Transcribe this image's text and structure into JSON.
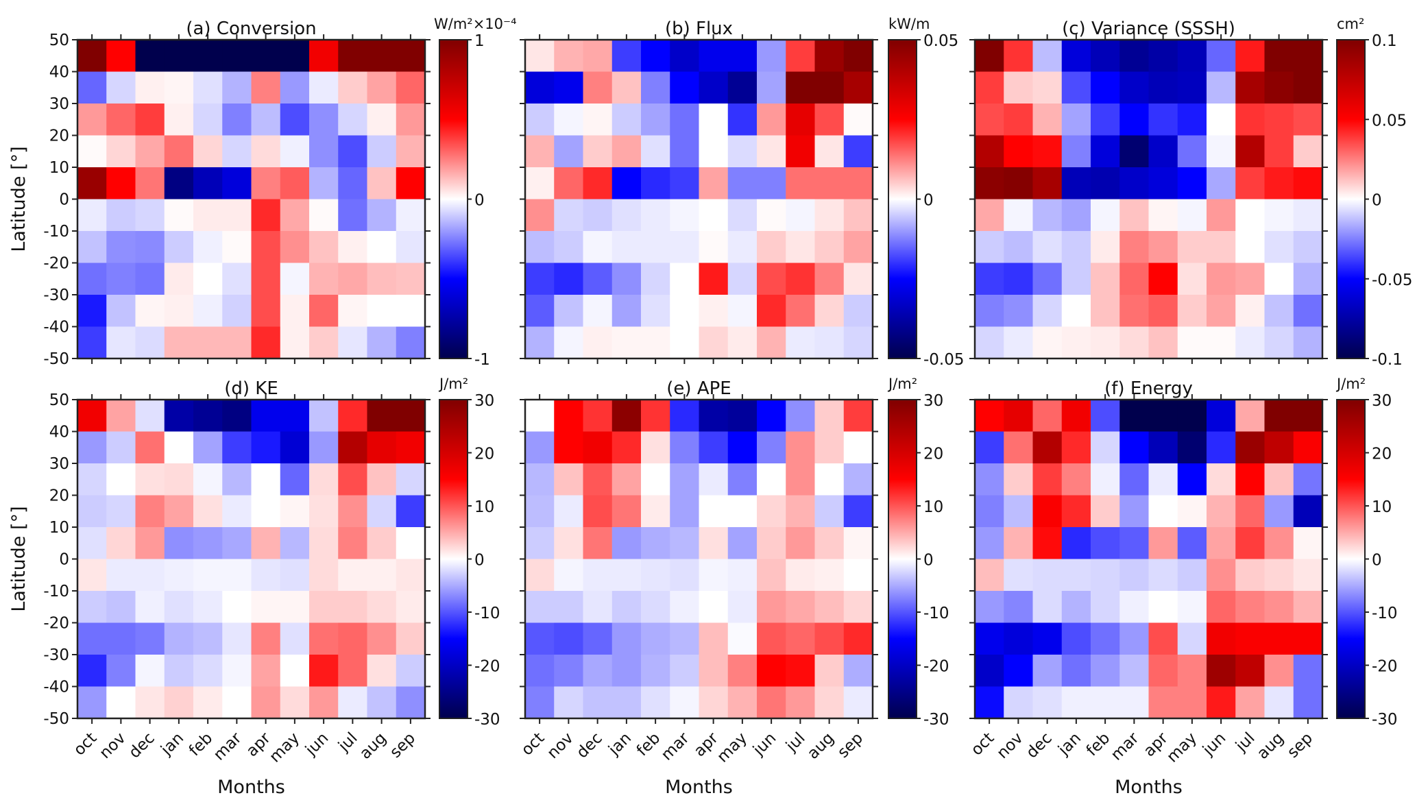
{
  "figure": {
    "ylabel": "Latitude [°]",
    "xlabel": "Months",
    "months": [
      "oct",
      "nov",
      "dec",
      "jan",
      "feb",
      "mar",
      "apr",
      "may",
      "jun",
      "jul",
      "aug",
      "sep"
    ],
    "y_ticks": [
      "50",
      "40",
      "30",
      "20",
      "10",
      "0",
      "-10",
      "-20",
      "-30",
      "-40",
      "-50"
    ],
    "colormap": {
      "min": "#00004d",
      "low": "#0000ff",
      "mid": "#ffffff",
      "high": "#ff0000",
      "max": "#800000"
    }
  },
  "chart_data": [
    {
      "type": "heatmap",
      "title": "(a) Conversion",
      "unit": "W/m²×10⁻⁴",
      "clim": [
        -1,
        1
      ],
      "cbar_ticks": [
        "1",
        "0",
        "-1"
      ],
      "cbar_tick_values": [
        1,
        0,
        -1
      ],
      "y_bins_north_to_south": [
        "40–50",
        "30–40",
        "20–30",
        "10–20",
        "0–10",
        "-10–0",
        "-20–-10",
        "-30–-20",
        "-40–-30",
        "-50–-40"
      ],
      "values": [
        [
          1,
          0.5,
          -1,
          -1,
          -1,
          -1,
          -1,
          -1,
          0.55,
          1,
          1,
          1
        ],
        [
          -0.3,
          -0.08,
          0.03,
          0.02,
          -0.06,
          -0.15,
          0.25,
          -0.2,
          -0.04,
          0.1,
          0.18,
          0.3
        ],
        [
          0.2,
          0.3,
          0.38,
          0.03,
          -0.08,
          -0.25,
          -0.13,
          -0.35,
          -0.22,
          -0.08,
          0.03,
          0.2
        ],
        [
          0.01,
          0.08,
          0.17,
          0.28,
          0.08,
          -0.08,
          0.07,
          -0.03,
          -0.22,
          -0.35,
          -0.1,
          0.15
        ],
        [
          0.9,
          0.5,
          0.27,
          -0.85,
          -0.7,
          -0.6,
          0.25,
          0.32,
          -0.15,
          -0.3,
          0.12,
          0.5
        ],
        [
          -0.04,
          -0.1,
          -0.08,
          0.01,
          0.04,
          0.04,
          0.42,
          0.17,
          0.01,
          -0.28,
          -0.15,
          -0.03
        ],
        [
          -0.12,
          -0.22,
          -0.23,
          -0.1,
          -0.03,
          0.01,
          0.35,
          0.22,
          0.12,
          0.03,
          0,
          -0.05
        ],
        [
          -0.28,
          -0.25,
          -0.27,
          0.04,
          0,
          -0.06,
          0.35,
          -0.02,
          0.15,
          0.17,
          0.13,
          0.12
        ],
        [
          -0.45,
          -0.12,
          0.02,
          0.03,
          -0.03,
          -0.09,
          0.35,
          0.03,
          0.3,
          0.02,
          0,
          0
        ],
        [
          -0.38,
          -0.05,
          -0.07,
          0.14,
          0.14,
          0.14,
          0.42,
          0.03,
          0.1,
          -0.05,
          -0.15,
          -0.25
        ]
      ]
    },
    {
      "type": "heatmap",
      "title": "(b) Flux",
      "unit": "kW/m",
      "clim": [
        -0.05,
        0.05
      ],
      "cbar_ticks": [
        "0.05",
        "0",
        "-0.05"
      ],
      "cbar_tick_values": [
        0.05,
        0,
        -0.05
      ],
      "values": [
        [
          0.0025,
          0.0075,
          0.0085,
          -0.019,
          -0.025,
          -0.0325,
          -0.0275,
          -0.0275,
          -0.01,
          0.019,
          0.045,
          0.05
        ],
        [
          -0.03,
          -0.0275,
          0.0125,
          0.006,
          -0.0125,
          -0.025,
          -0.0325,
          -0.04,
          -0.009,
          0.05,
          0.05,
          0.0425
        ],
        [
          -0.005,
          -0.001,
          0.001,
          -0.005,
          -0.009,
          -0.014,
          0,
          -0.02,
          0.01,
          0.03,
          0.0175,
          0.0005
        ],
        [
          0.0075,
          -0.009,
          0.005,
          0.0085,
          -0.003,
          -0.014,
          0,
          -0.0035,
          0.0025,
          0.0275,
          0.0025,
          -0.019
        ],
        [
          0.0015,
          0.015,
          0.021,
          -0.025,
          -0.021,
          -0.019,
          0.009,
          -0.0125,
          -0.0125,
          0.014,
          0.014,
          0.014
        ],
        [
          0.011,
          -0.004,
          -0.005,
          -0.003,
          -0.002,
          -0.001,
          0,
          -0.0035,
          0.0005,
          -0.001,
          0.0025,
          0.006
        ],
        [
          -0.0065,
          -0.005,
          -0.001,
          -0.002,
          -0.002,
          -0.002,
          0.0005,
          -0.002,
          0.005,
          0.0025,
          0.005,
          0.009
        ],
        [
          -0.019,
          -0.021,
          -0.016,
          -0.011,
          -0.004,
          0,
          0.0225,
          -0.004,
          0.0175,
          0.02,
          0.0125,
          0.0025
        ],
        [
          -0.016,
          -0.006,
          -0.001,
          -0.009,
          -0.003,
          0,
          0.0015,
          -0.001,
          0.021,
          0.014,
          0.004,
          -0.005
        ],
        [
          -0.0075,
          -0.001,
          0.0015,
          0.001,
          0.001,
          0,
          0.004,
          0.002,
          0.0075,
          -0.002,
          -0.0025,
          -0.004
        ]
      ]
    },
    {
      "type": "heatmap",
      "title": "(c) Variance (SSSH)",
      "unit": "cm²",
      "clim": [
        -0.1,
        0.1
      ],
      "cbar_ticks": [
        "0.1",
        "0.05",
        "0",
        "-0.05",
        "-0.1"
      ],
      "cbar_tick_values": [
        0.1,
        0.05,
        0,
        -0.05,
        -0.1
      ],
      "values": [
        [
          0.1,
          0.04,
          -0.013,
          -0.06,
          -0.07,
          -0.08,
          -0.075,
          -0.07,
          -0.03,
          0.045,
          0.1,
          0.1
        ],
        [
          0.038,
          0.01,
          0.008,
          -0.035,
          -0.05,
          -0.065,
          -0.07,
          -0.068,
          -0.014,
          0.085,
          0.095,
          0.1
        ],
        [
          0.035,
          0.038,
          0.015,
          -0.018,
          -0.038,
          -0.05,
          -0.04,
          -0.045,
          0,
          0.04,
          0.038,
          0.035
        ],
        [
          0.08,
          0.05,
          0.048,
          -0.025,
          -0.06,
          -0.09,
          -0.065,
          -0.028,
          -0.002,
          0.08,
          0.038,
          0.01
        ],
        [
          0.095,
          0.098,
          0.085,
          -0.07,
          -0.072,
          -0.065,
          -0.06,
          -0.05,
          -0.017,
          0.038,
          0.045,
          0.048
        ],
        [
          0.017,
          -0.002,
          -0.014,
          -0.018,
          -0.002,
          0.012,
          0.002,
          -0.002,
          0.02,
          0,
          -0.002,
          -0.004
        ],
        [
          -0.01,
          -0.013,
          -0.006,
          -0.01,
          0.004,
          0.025,
          0.02,
          0.01,
          0.01,
          0,
          -0.006,
          -0.01
        ],
        [
          -0.038,
          -0.04,
          -0.028,
          -0.01,
          0.012,
          0.03,
          0.05,
          0.006,
          0.02,
          0.018,
          0,
          -0.015
        ],
        [
          -0.025,
          -0.022,
          -0.008,
          0,
          0.012,
          0.028,
          0.032,
          0.01,
          0.018,
          0.003,
          -0.012,
          -0.028
        ],
        [
          -0.008,
          -0.004,
          0.002,
          0.003,
          0.004,
          0.007,
          0.012,
          0.001,
          0.001,
          -0.004,
          -0.008,
          -0.015
        ]
      ]
    },
    {
      "type": "heatmap",
      "title": "(d) KE",
      "unit": "J/m²",
      "clim": [
        -30,
        30
      ],
      "cbar_ticks": [
        "30",
        "20",
        "10",
        "0",
        "-10",
        "-20",
        "-30"
      ],
      "cbar_tick_values": [
        30,
        20,
        10,
        0,
        -10,
        -20,
        -30
      ],
      "values": [
        [
          16.5,
          5.4,
          -1.8,
          -22.5,
          -24,
          -25.5,
          -16.5,
          -16.5,
          -3.6,
          12.6,
          30,
          30
        ],
        [
          -6,
          -3,
          8.4,
          0,
          -5.4,
          -11.4,
          -13.5,
          -18.6,
          -6,
          24,
          18,
          16.5
        ],
        [
          -2.4,
          0,
          1.8,
          2.1,
          -0.6,
          -4.2,
          0,
          -9,
          2.1,
          10.5,
          3.6,
          -2.4
        ],
        [
          -3,
          -2.4,
          7.5,
          5.4,
          1.8,
          -1.2,
          0,
          0.6,
          1.8,
          6.6,
          -2.4,
          -11.4
        ],
        [
          -1.8,
          2.4,
          6,
          -6.6,
          -6,
          -5.1,
          4.5,
          -4.2,
          2.1,
          7.5,
          3,
          0
        ],
        [
          1.5,
          -1.2,
          -1.2,
          -0.9,
          -0.6,
          -0.6,
          -1.5,
          -1.8,
          2.1,
          0.9,
          0.9,
          1.5
        ],
        [
          -3,
          -3.6,
          -0.9,
          -1.8,
          -1.2,
          0,
          0.6,
          0.6,
          3,
          3,
          2.1,
          1.2
        ],
        [
          -8.4,
          -8.4,
          -7.8,
          -4.5,
          -3.9,
          -1.5,
          7.5,
          -1.8,
          8.4,
          9,
          6.6,
          3
        ],
        [
          -12.6,
          -7.5,
          -0.6,
          -3,
          -2.1,
          -0.6,
          5.4,
          0,
          13.5,
          9,
          1.8,
          -3
        ],
        [
          -6,
          0,
          1.5,
          2.7,
          1.2,
          0,
          6,
          2.1,
          6,
          -1.2,
          -3.6,
          -6.6
        ]
      ]
    },
    {
      "type": "heatmap",
      "title": "(e) APE",
      "unit": "J/m²",
      "clim": [
        -30,
        30
      ],
      "cbar_ticks": [
        "30",
        "20",
        "10",
        "0",
        "-10",
        "-20",
        "-30"
      ],
      "cbar_tick_values": [
        30,
        20,
        10,
        0,
        -10,
        -20,
        -30
      ],
      "values": [
        [
          0,
          15,
          12,
          28.5,
          12,
          -12.6,
          -22.5,
          -23.4,
          -15,
          -6.6,
          3,
          11.4
        ],
        [
          -6,
          15,
          16.5,
          12.6,
          1.8,
          -7.5,
          -11.4,
          -15,
          -7.5,
          6.6,
          3,
          0
        ],
        [
          -4.2,
          3.6,
          9.9,
          5.4,
          0,
          -5.4,
          -1.2,
          -7.5,
          0,
          6.6,
          0,
          -4.5
        ],
        [
          -3.9,
          -1.2,
          10.5,
          8.1,
          1.2,
          -5.4,
          0,
          0,
          2.4,
          4.5,
          -3,
          -11.4
        ],
        [
          -3,
          1.8,
          8.1,
          -6,
          -4.8,
          -4.2,
          1.8,
          -5.4,
          3,
          6,
          3,
          0.6
        ],
        [
          2.1,
          -0.6,
          -1.2,
          -1.2,
          -1.5,
          -1.8,
          -0.6,
          -0.9,
          3.6,
          1.2,
          0.9,
          0
        ],
        [
          -3,
          -3,
          -1.5,
          -3,
          -2.1,
          -0.9,
          0,
          -1.2,
          6,
          5.1,
          3.9,
          2.4
        ],
        [
          -9.9,
          -10.5,
          -9,
          -6,
          -4.8,
          -4.2,
          3.9,
          -0.3,
          9.9,
          9,
          10.5,
          12.6
        ],
        [
          -8.4,
          -7.5,
          -5.1,
          -6,
          -4.5,
          -3,
          3.9,
          7.5,
          15,
          14.4,
          3,
          -4.8
        ],
        [
          -7.5,
          -2.4,
          -3.6,
          -3.6,
          -1.8,
          -0.6,
          2.4,
          4.5,
          8.1,
          6,
          2.4,
          -1.2
        ]
      ]
    },
    {
      "type": "heatmap",
      "title": "(f) Energy",
      "unit": "J/m²",
      "clim": [
        -30,
        30
      ],
      "cbar_ticks": [
        "30",
        "20",
        "10",
        "0",
        "-10",
        "-20",
        "-30"
      ],
      "cbar_tick_values": [
        30,
        20,
        10,
        0,
        -10,
        -20,
        -30
      ],
      "values": [
        [
          15,
          18,
          9,
          16.5,
          -10.5,
          -30,
          -30,
          -30,
          -18,
          5.1,
          30,
          30
        ],
        [
          -11.4,
          8.4,
          24,
          12.6,
          -2.4,
          -15,
          -21,
          -27,
          -12.6,
          27,
          22.5,
          15.6
        ],
        [
          -6.6,
          3,
          11.4,
          7.5,
          -0.9,
          -9,
          -1.2,
          -15,
          2.1,
          15,
          3.6,
          -8.1
        ],
        [
          -7.5,
          -3.9,
          15.6,
          12.6,
          3,
          -6,
          0,
          0.6,
          4.5,
          9,
          -6,
          -21
        ],
        [
          -6,
          4.5,
          14.4,
          -12.6,
          -10.5,
          -9.6,
          6,
          -9.6,
          5.4,
          11.4,
          6.6,
          0.6
        ],
        [
          3.9,
          -1.8,
          -2.1,
          -2.1,
          -2.4,
          -3,
          -2.1,
          -3,
          6.6,
          3,
          2.4,
          1.5
        ],
        [
          -6,
          -7.2,
          -2.1,
          -4.5,
          -2.4,
          -0.9,
          0,
          -0.6,
          9,
          7.5,
          6.6,
          4.5
        ],
        [
          -16.5,
          -18,
          -16.5,
          -10.5,
          -8.4,
          -6,
          10.5,
          -2.4,
          16.5,
          15.6,
          15.6,
          15.6
        ],
        [
          -19.5,
          -15,
          -5.4,
          -8.4,
          -6,
          -3.9,
          9,
          7.5,
          26.4,
          22.5,
          6.6,
          -8.4
        ],
        [
          -14.4,
          -2.4,
          -1.8,
          -0.9,
          -0.9,
          -0.9,
          7.5,
          7.5,
          13.5,
          5.4,
          -1.5,
          -8.4
        ]
      ]
    }
  ]
}
